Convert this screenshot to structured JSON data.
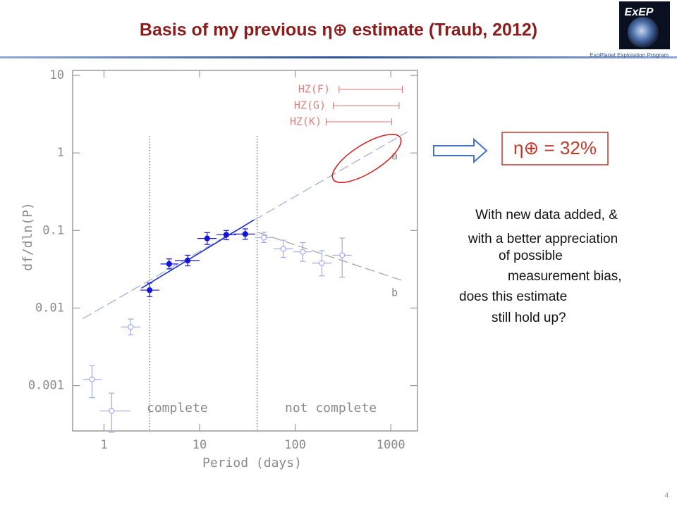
{
  "slide": {
    "title": "Basis of my previous η⊕ estimate (Traub, 2012)",
    "logo": "ExEP",
    "program": "ExoPlanet Exploration Program",
    "result": "η⊕ = 32%",
    "question": [
      "With new data added, &",
      "with a better appreciation",
      "of possible",
      "measurement bias,",
      "does this estimate",
      "still hold up?"
    ],
    "page_number": "4"
  },
  "chart_data": {
    "type": "scatter",
    "xlabel": "Period (days)",
    "ylabel": "df/dln(P)",
    "xlog": true,
    "ylog": true,
    "xlim": [
      0.47,
      1900
    ],
    "ylim": [
      0.00026,
      11.6
    ],
    "xticks": [
      1,
      10,
      100,
      1000
    ],
    "yticks": [
      10,
      1,
      0.1,
      0.01,
      0.001
    ],
    "series": [
      {
        "name": "complete",
        "color": "#1515d8",
        "filled": true,
        "x": [
          3.0,
          4.8,
          7.5,
          12,
          19,
          30
        ],
        "values": [
          0.017,
          0.037,
          0.041,
          0.079,
          0.088,
          0.09
        ],
        "x_low": [
          2.4,
          3.9,
          5.5,
          9.5,
          15,
          23
        ],
        "x_high": [
          3.8,
          6.0,
          10,
          15,
          24,
          38
        ],
        "y_low": [
          0.014,
          0.032,
          0.035,
          0.066,
          0.076,
          0.077
        ],
        "y_high": [
          0.021,
          0.043,
          0.048,
          0.094,
          0.1,
          0.105
        ]
      },
      {
        "name": "not complete",
        "color": "#a3aaea",
        "filled": false,
        "x": [
          0.75,
          1.2,
          1.9,
          47,
          75,
          120,
          190,
          310
        ],
        "values": [
          0.0012,
          0.00047,
          0.0057,
          0.081,
          0.058,
          0.053,
          0.038,
          0.048
        ],
        "x_low": [
          0.6,
          0.9,
          1.5,
          38,
          60,
          95,
          150,
          245
        ],
        "x_high": [
          0.95,
          1.9,
          2.4,
          60,
          95,
          150,
          240,
          390
        ],
        "y_low": [
          0.0007,
          0.00025,
          0.0045,
          0.07,
          0.045,
          0.04,
          0.026,
          0.025
        ],
        "y_high": [
          0.0018,
          0.0008,
          0.0072,
          0.095,
          0.075,
          0.07,
          0.055,
          0.08
        ]
      }
    ],
    "lines": [
      {
        "name": "a",
        "color": "#a0a8d8",
        "dash": true,
        "x": [
          0.6,
          1490
        ],
        "values": [
          0.0073,
          1.87
        ]
      },
      {
        "name": "fit",
        "color": "#1c2fd0",
        "dash": false,
        "x": [
          2.46,
          37
        ],
        "values": [
          0.018,
          0.137
        ]
      },
      {
        "name": "b",
        "color": "#a0a0a0",
        "dash": true,
        "x": [
          41,
          1320
        ],
        "values": [
          0.094,
          0.0226
        ]
      }
    ],
    "completeness_limits": [
      3,
      40
    ],
    "habitable_zones": [
      {
        "name": "HZ(F)",
        "x": [
          287,
          1320
        ]
      },
      {
        "name": "HZ(G)",
        "x": [
          250,
          1220
        ]
      },
      {
        "name": "HZ(K)",
        "x": [
          211,
          1020
        ]
      }
    ]
  }
}
